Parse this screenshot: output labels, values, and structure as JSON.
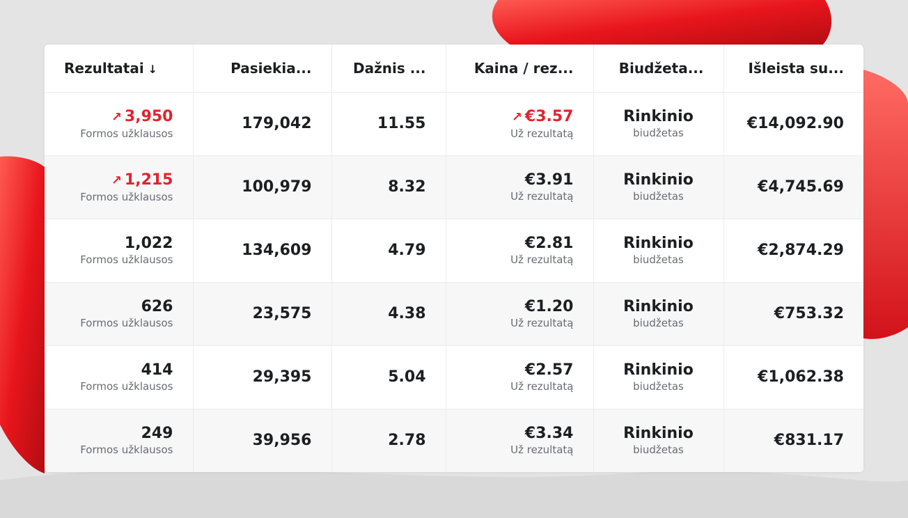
{
  "colors": {
    "accent": "#e0232e",
    "text": "#1c1e21",
    "muted": "#686c73",
    "background": "#e3e3e3"
  },
  "columns": [
    {
      "label": "Rezultatai",
      "sort_icon": "arrow-down-icon",
      "sort_glyph": "↓"
    },
    {
      "label": "Pasiekia..."
    },
    {
      "label": "Dažnis ..."
    },
    {
      "label": "Kaina / rez..."
    },
    {
      "label": "Biudžeta..."
    },
    {
      "label": "Išleista su..."
    }
  ],
  "rows": [
    {
      "results": "3,950",
      "results_trend": "up",
      "results_trend_glyph": "↗",
      "results_label": "Formos užklausos",
      "reach": "179,042",
      "frequency": "11.55",
      "cost": "€3.57",
      "cost_trend": "up",
      "cost_trend_glyph": "↗",
      "cost_label": "Už rezultatą",
      "budget": "Rinkinio",
      "budget_label": "biudžetas",
      "spent": "€14,092.90"
    },
    {
      "results": "1,215",
      "results_trend": "up",
      "results_trend_glyph": "↗",
      "results_label": "Formos užklausos",
      "reach": "100,979",
      "frequency": "8.32",
      "cost": "€3.91",
      "cost_label": "Už rezultatą",
      "budget": "Rinkinio",
      "budget_label": "biudžetas",
      "spent": "€4,745.69"
    },
    {
      "results": "1,022",
      "results_label": "Formos užklausos",
      "reach": "134,609",
      "frequency": "4.79",
      "cost": "€2.81",
      "cost_label": "Už rezultatą",
      "budget": "Rinkinio",
      "budget_label": "biudžetas",
      "spent": "€2,874.29"
    },
    {
      "results": "626",
      "results_label": "Formos užklausos",
      "reach": "23,575",
      "frequency": "4.38",
      "cost": "€1.20",
      "cost_label": "Už rezultatą",
      "budget": "Rinkinio",
      "budget_label": "biudžetas",
      "spent": "€753.32"
    },
    {
      "results": "414",
      "results_label": "Formos užklausos",
      "reach": "29,395",
      "frequency": "5.04",
      "cost": "€2.57",
      "cost_label": "Už rezultatą",
      "budget": "Rinkinio",
      "budget_label": "biudžetas",
      "spent": "€1,062.38"
    },
    {
      "results": "249",
      "results_label": "Formos užklausos",
      "reach": "39,956",
      "frequency": "2.78",
      "cost": "€3.34",
      "cost_label": "Už rezultatą",
      "budget": "Rinkinio",
      "budget_label": "biudžetas",
      "spent": "€831.17"
    }
  ]
}
